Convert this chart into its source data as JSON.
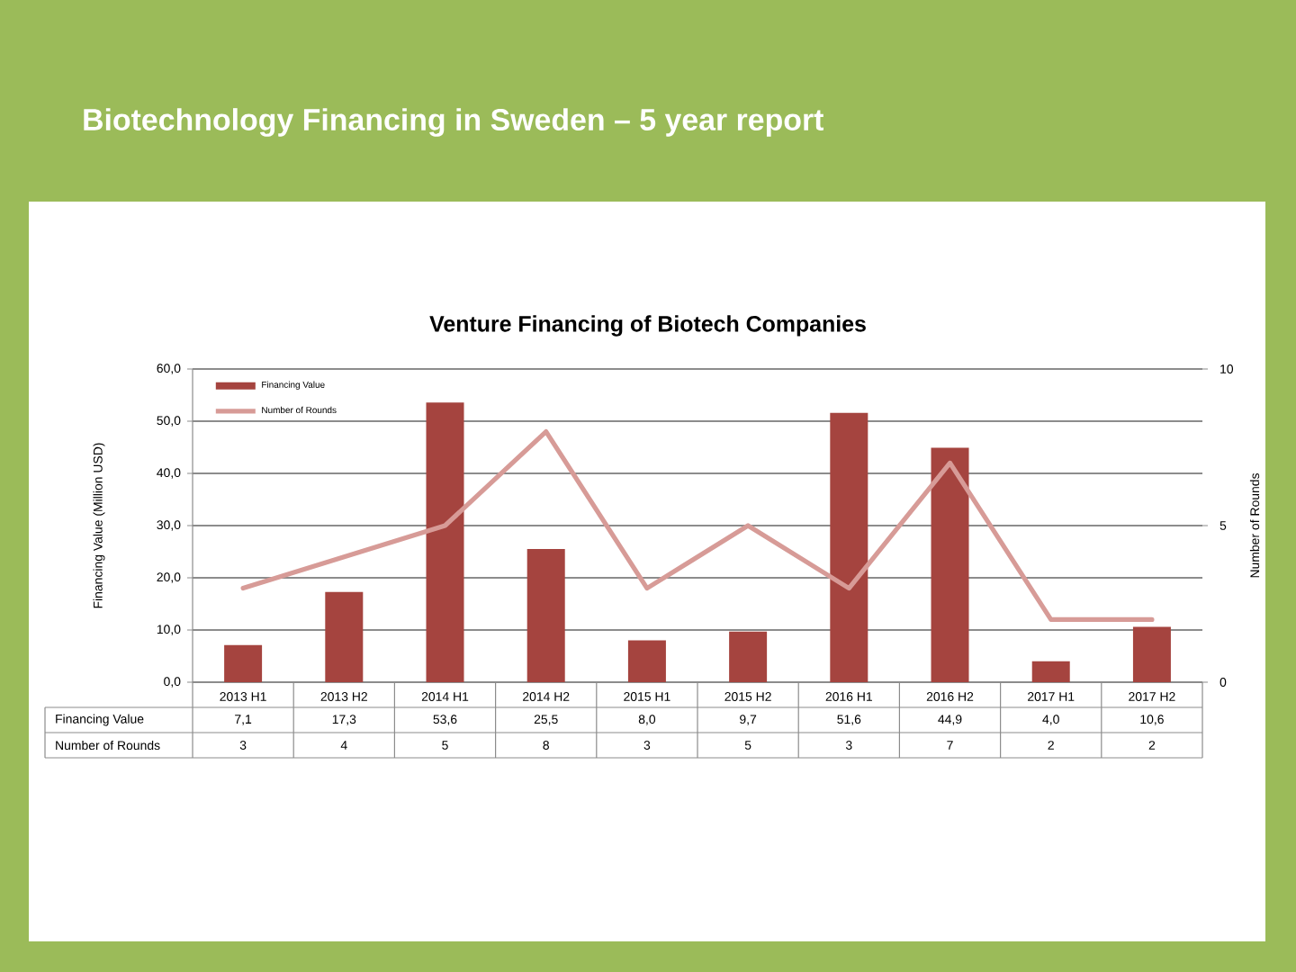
{
  "chart_data": {
    "type": "bar",
    "title": "Biotechnology Financing in Sweden – 5 year report",
    "subtitle": "Venture Financing of Biotech Companies",
    "ylabel": "Financing Value (Million USD)",
    "y2label": "Number of Rounds",
    "categories": [
      "2013 H1",
      "2013 H2",
      "2014 H1",
      "2014 H2",
      "2015 H1",
      "2015 H2",
      "2016 H1",
      "2016 H2",
      "2017 H1",
      "2017 H2"
    ],
    "series": [
      {
        "name": "Financing Value",
        "color": "#a5443f",
        "values": [
          7.1,
          17.3,
          53.6,
          25.5,
          8.0,
          9.7,
          51.6,
          44.9,
          4.0,
          10.6
        ],
        "value_labels": [
          "7,1",
          "17,3",
          "53,6",
          "25,5",
          "8,0",
          "9,7",
          "51,6",
          "44,9",
          "4,0",
          "10,6"
        ]
      },
      {
        "name": "Number of Rounds",
        "type": "line",
        "axis": "y2",
        "color": "#d79b97",
        "values": [
          3,
          4,
          5,
          8,
          3,
          5,
          3,
          7,
          2,
          2
        ],
        "value_labels": [
          "3",
          "4",
          "5",
          "8",
          "3",
          "5",
          "3",
          "7",
          "2",
          "2"
        ]
      }
    ],
    "ylim": [
      0,
      60
    ],
    "yticks": [
      {
        "value": 0,
        "label": "0,0"
      },
      {
        "value": 10,
        "label": "10,0"
      },
      {
        "value": 20,
        "label": "20,0"
      },
      {
        "value": 30,
        "label": "30,0"
      },
      {
        "value": 40,
        "label": "40,0"
      },
      {
        "value": 50,
        "label": "50,0"
      },
      {
        "value": 60,
        "label": "60,0"
      }
    ],
    "y2lim": [
      0,
      10
    ],
    "y2ticks": [
      0,
      5,
      10
    ],
    "grid": "y",
    "legend": "top left"
  }
}
